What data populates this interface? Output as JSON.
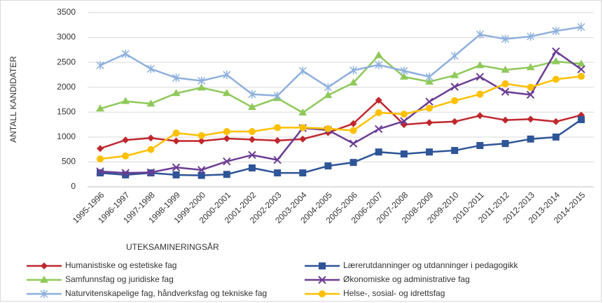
{
  "chart_data": {
    "type": "line",
    "y_label": "ANTALL KANDIDATER",
    "x_label": "UTEKSAMINERINGSÅR",
    "categories": [
      "1995-1996",
      "1996-1997",
      "1997-1998",
      "1998-1999",
      "1999-2000",
      "2000-2001",
      "2001-2002",
      "2002-2003",
      "2003-2004",
      "2004-2005",
      "2005-2006",
      "2006-2007",
      "2007-2008",
      "2008-2009",
      "2009-2010",
      "2010-2011",
      "2011-2012",
      "2012-2013",
      "2013-2014",
      "2014-2015"
    ],
    "ylim": [
      0,
      3500
    ],
    "yticks": [
      0,
      500,
      1000,
      1500,
      2000,
      2500,
      3000,
      3500
    ],
    "grid": true,
    "legend": "bottom",
    "series": [
      {
        "name": "Humanistiske og estetiske fag",
        "color": "#c0272d",
        "marker": "diamond",
        "values": [
          770,
          940,
          980,
          920,
          920,
          970,
          950,
          930,
          960,
          1090,
          1270,
          1740,
          1250,
          1290,
          1310,
          1430,
          1340,
          1360,
          1310,
          1440
        ]
      },
      {
        "name": "Lærerutdanninger og utdanninger i pedagogikk",
        "color": "#2e5597",
        "marker": "square",
        "values": [
          280,
          240,
          280,
          240,
          230,
          250,
          380,
          280,
          280,
          420,
          490,
          700,
          660,
          700,
          730,
          830,
          870,
          960,
          1000,
          1350
        ]
      },
      {
        "name": "Samfunnsfag og juridiske fag",
        "color": "#8fc95a",
        "marker": "triangle",
        "values": [
          1570,
          1720,
          1670,
          1880,
          1990,
          1880,
          1600,
          1780,
          1490,
          1840,
          2090,
          2640,
          2210,
          2110,
          2240,
          2440,
          2350,
          2400,
          2520,
          2470
        ]
      },
      {
        "name": "Økonomiske og administrative fag",
        "color": "#6b3d94",
        "marker": "x",
        "values": [
          310,
          280,
          290,
          390,
          340,
          510,
          640,
          540,
          1180,
          1140,
          870,
          1160,
          1320,
          1710,
          2010,
          2210,
          1910,
          1850,
          2720,
          2360
        ]
      },
      {
        "name": "Naturvitenskapelige fag, håndverksfag og tekniske fag",
        "color": "#8eb0dd",
        "marker": "star",
        "values": [
          2440,
          2670,
          2370,
          2190,
          2130,
          2250,
          1860,
          1830,
          2330,
          2000,
          2340,
          2450,
          2330,
          2210,
          2630,
          3060,
          2970,
          3020,
          3130,
          3210
        ]
      },
      {
        "name": "Helse-, sosial- og idrettsfag",
        "color": "#ffc000",
        "marker": "circle",
        "values": [
          560,
          620,
          750,
          1080,
          1030,
          1110,
          1110,
          1190,
          1190,
          1170,
          1130,
          1490,
          1460,
          1580,
          1730,
          1860,
          2070,
          2000,
          2160,
          2220
        ]
      }
    ]
  }
}
